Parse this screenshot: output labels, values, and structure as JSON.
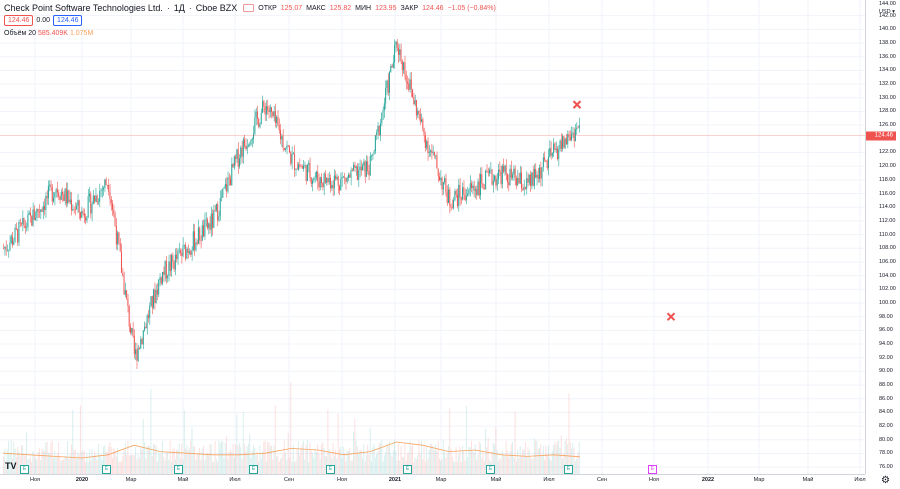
{
  "legend": {
    "title": "Check Point Software Technologies Ltd.",
    "dot": "·",
    "interval": "1Д",
    "exchange": "Cboe BZX",
    "open_label": "ОТКР",
    "open_value": "125.07",
    "high_label": "МАКС",
    "high_value": "125.82",
    "low_label": "МИН",
    "low_value": "123.95",
    "close_label": "ЗАКР",
    "close_value": "124.46",
    "change_value": "−1.05 (−0.84%)",
    "bid": "124.46",
    "spread": "0.00",
    "ask": "124.46"
  },
  "volume_legend": {
    "name": "Объём 20",
    "value": "585.409K",
    "ma_value": "1.075M"
  },
  "price_axis": {
    "currency": "USD",
    "top_label": "144.00",
    "labels": [
      "142.00",
      "140.00",
      "138.00",
      "136.00",
      "134.00",
      "132.00",
      "130.00",
      "128.00",
      "126.00",
      "122.00",
      "120.00",
      "118.00",
      "116.00",
      "114.00",
      "112.00",
      "110.00",
      "108.00",
      "106.00",
      "104.00",
      "102.00",
      "100.00",
      "98.00",
      "96.00",
      "94.00",
      "92.00",
      "90.00",
      "88.00",
      "86.00",
      "84.00",
      "82.00",
      "80.00",
      "78.00",
      "76.00"
    ],
    "last_price": "124.46"
  },
  "time_axis": {
    "labels": [
      "Ноя",
      "2020",
      "Мар",
      "Май",
      "Июл",
      "Сен",
      "Ноя",
      "2021",
      "Мар",
      "Май",
      "Июл",
      "Сен",
      "Ноя",
      "2022",
      "Мар",
      "Май",
      "Июл"
    ]
  },
  "marker_labels": {
    "earnings": "E",
    "logo": "TV"
  },
  "icons": {
    "settings": "gear-icon",
    "logo": "tradingview-logo",
    "earnings": "earnings-icon",
    "marker": "cross-icon"
  },
  "colors": {
    "up": "#26a69a",
    "down": "#ef5350",
    "volume_ma": "#f7a35c",
    "price_line": "#ef5350",
    "future_earnings": "#e040fb"
  },
  "chart_data": {
    "type": "candlestick",
    "symbol": "Check Point Software Technologies Ltd.",
    "ylim": [
      75,
      144
    ],
    "x": [
      "2019-10",
      "2019-11",
      "2019-12",
      "2020-01",
      "2020-02",
      "2020-03",
      "2020-04",
      "2020-05",
      "2020-06",
      "2020-07",
      "2020-08",
      "2020-09",
      "2020-10",
      "2020-11",
      "2020-12",
      "2021-01",
      "2021-02",
      "2021-03",
      "2021-04",
      "2021-05",
      "2021-06",
      "2021-07",
      "2021-08"
    ],
    "close": [
      108,
      112,
      117,
      113,
      118,
      92,
      104,
      108,
      112,
      122,
      129,
      121,
      118,
      118,
      120,
      138,
      125,
      115,
      117,
      119,
      117,
      122,
      126
    ],
    "volume_ma": [
      1.3,
      1.2,
      1.1,
      1.0,
      1.2,
      1.8,
      1.4,
      1.3,
      1.2,
      1.2,
      1.3,
      1.6,
      1.5,
      1.2,
      1.4,
      2.0,
      1.8,
      1.4,
      1.5,
      1.2,
      1.1,
      1.2,
      1.075
    ],
    "last_price": 124.46,
    "markers": [
      {
        "type": "cross",
        "x": "2021-08",
        "y": 129
      },
      {
        "type": "cross",
        "x": "2021-11",
        "y": 98
      }
    ]
  }
}
